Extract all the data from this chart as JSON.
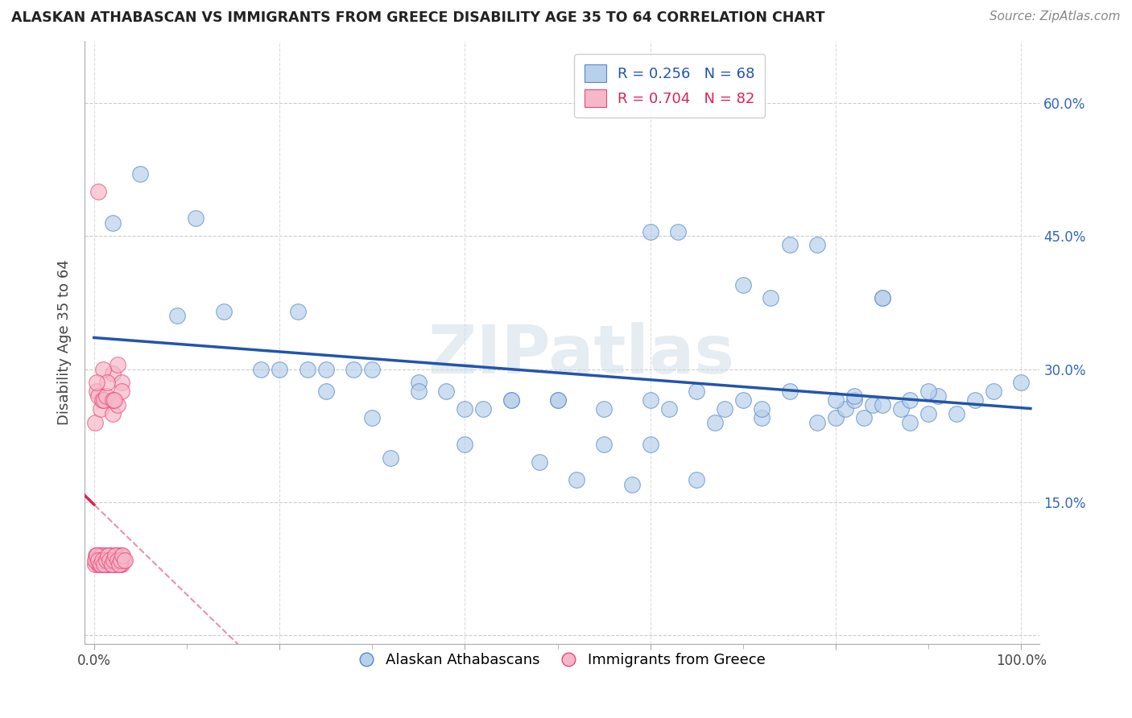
{
  "title": "ALASKAN ATHABASCAN VS IMMIGRANTS FROM GREECE DISABILITY AGE 35 TO 64 CORRELATION CHART",
  "source": "Source: ZipAtlas.com",
  "ylabel": "Disability Age 35 to 64",
  "watermark": "ZIPatlas",
  "xlim": [
    -0.01,
    1.02
  ],
  "ylim": [
    -0.01,
    0.67
  ],
  "xticks": [
    0.0,
    0.2,
    0.4,
    0.6,
    0.8,
    1.0
  ],
  "yticks": [
    0.0,
    0.15,
    0.3,
    0.45,
    0.6
  ],
  "xtick_labels_bottom": [
    "0.0%",
    "",
    "",
    "",
    "",
    "100.0%"
  ],
  "xtick_labels_minor": [
    0.1,
    0.2,
    0.3,
    0.4,
    0.5,
    0.6,
    0.7,
    0.8,
    0.9
  ],
  "ytick_labels_right": [
    "",
    "15.0%",
    "30.0%",
    "45.0%",
    "60.0%"
  ],
  "legend_label_1": "Alaskan Athabascans",
  "legend_label_2": "Immigrants from Greece",
  "R1": 0.256,
  "N1": 68,
  "R2": 0.704,
  "N2": 82,
  "color_blue": "#b8d0ea",
  "color_pink": "#f5b8c8",
  "color_blue_line": "#2255aa",
  "color_pink_line": "#dd2255",
  "color_blue_dark": "#5588cc",
  "color_pink_dark": "#ee4477",
  "blue_scatter_x": [
    0.02,
    0.05,
    0.09,
    0.11,
    0.14,
    0.18,
    0.2,
    0.22,
    0.23,
    0.25,
    0.28,
    0.3,
    0.32,
    0.35,
    0.38,
    0.4,
    0.42,
    0.45,
    0.48,
    0.5,
    0.52,
    0.55,
    0.58,
    0.6,
    0.62,
    0.65,
    0.67,
    0.7,
    0.72,
    0.75,
    0.78,
    0.8,
    0.81,
    0.82,
    0.83,
    0.84,
    0.85,
    0.87,
    0.88,
    0.9,
    0.91,
    0.93,
    0.95,
    0.97,
    1.0,
    0.6,
    0.63,
    0.7,
    0.73,
    0.75,
    0.78,
    0.82,
    0.85,
    0.88,
    0.9,
    0.25,
    0.3,
    0.35,
    0.4,
    0.45,
    0.5,
    0.55,
    0.6,
    0.65,
    0.68,
    0.72,
    0.8,
    0.85
  ],
  "blue_scatter_y": [
    0.465,
    0.52,
    0.36,
    0.47,
    0.365,
    0.3,
    0.3,
    0.365,
    0.3,
    0.275,
    0.3,
    0.245,
    0.2,
    0.285,
    0.275,
    0.215,
    0.255,
    0.265,
    0.195,
    0.265,
    0.175,
    0.215,
    0.17,
    0.215,
    0.255,
    0.175,
    0.24,
    0.265,
    0.245,
    0.275,
    0.24,
    0.245,
    0.255,
    0.265,
    0.245,
    0.26,
    0.38,
    0.255,
    0.24,
    0.25,
    0.27,
    0.25,
    0.265,
    0.275,
    0.285,
    0.455,
    0.455,
    0.395,
    0.38,
    0.44,
    0.44,
    0.27,
    0.38,
    0.265,
    0.275,
    0.3,
    0.3,
    0.275,
    0.255,
    0.265,
    0.265,
    0.255,
    0.265,
    0.275,
    0.255,
    0.255,
    0.265,
    0.26
  ],
  "pink_scatter_x": [
    0.001,
    0.002,
    0.003,
    0.004,
    0.005,
    0.006,
    0.007,
    0.008,
    0.009,
    0.01,
    0.011,
    0.012,
    0.013,
    0.014,
    0.015,
    0.016,
    0.017,
    0.018,
    0.019,
    0.02,
    0.021,
    0.022,
    0.023,
    0.024,
    0.025,
    0.026,
    0.027,
    0.028,
    0.029,
    0.03,
    0.002,
    0.004,
    0.006,
    0.008,
    0.01,
    0.012,
    0.014,
    0.016,
    0.018,
    0.02,
    0.022,
    0.024,
    0.026,
    0.028,
    0.03,
    0.032,
    0.001,
    0.003,
    0.005,
    0.007,
    0.009,
    0.011,
    0.013,
    0.015,
    0.017,
    0.019,
    0.021,
    0.023,
    0.025,
    0.027,
    0.029,
    0.031,
    0.033,
    0.001,
    0.003,
    0.005,
    0.007,
    0.009,
    0.011,
    0.013,
    0.02,
    0.025,
    0.03,
    0.02,
    0.025,
    0.03,
    0.02,
    0.022,
    0.01,
    0.014,
    0.005,
    0.003
  ],
  "pink_scatter_y": [
    0.08,
    0.085,
    0.09,
    0.085,
    0.08,
    0.09,
    0.085,
    0.09,
    0.085,
    0.08,
    0.085,
    0.09,
    0.085,
    0.08,
    0.09,
    0.08,
    0.085,
    0.09,
    0.08,
    0.085,
    0.085,
    0.09,
    0.085,
    0.08,
    0.09,
    0.085,
    0.08,
    0.09,
    0.085,
    0.08,
    0.09,
    0.085,
    0.08,
    0.09,
    0.085,
    0.08,
    0.085,
    0.09,
    0.085,
    0.08,
    0.085,
    0.09,
    0.085,
    0.08,
    0.09,
    0.085,
    0.085,
    0.09,
    0.085,
    0.08,
    0.085,
    0.08,
    0.085,
    0.09,
    0.085,
    0.08,
    0.085,
    0.09,
    0.085,
    0.08,
    0.085,
    0.09,
    0.085,
    0.24,
    0.275,
    0.27,
    0.255,
    0.265,
    0.265,
    0.27,
    0.295,
    0.305,
    0.285,
    0.25,
    0.26,
    0.275,
    0.265,
    0.265,
    0.3,
    0.285,
    0.5,
    0.285
  ]
}
